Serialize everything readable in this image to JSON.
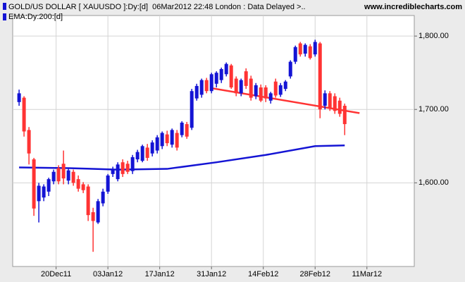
{
  "chart_data": {
    "type": "candlestick",
    "title": "GOLD/US DOLLAR [ XAUUSDO ]:Dy:[d]  06Mar2012 22:48 London : Data Delayed >..",
    "source": "www.incrediblecharts.com",
    "title_color": "#0000cc",
    "candles": {
      "x": [
        0,
        1,
        2,
        3,
        4,
        5,
        6,
        7,
        8,
        9,
        10,
        11,
        12,
        13,
        14,
        15,
        16,
        17,
        18,
        19,
        20,
        21,
        22,
        23,
        24,
        25,
        26,
        27,
        28,
        29,
        30,
        31,
        32,
        33,
        34,
        35,
        36,
        37,
        38,
        39,
        40,
        41,
        42,
        43,
        44,
        45,
        46,
        47,
        48,
        49,
        50,
        51,
        52,
        53,
        54,
        55,
        56,
        57,
        58,
        59,
        60,
        61,
        62,
        63,
        64,
        65,
        66
      ],
      "open": [
        1710,
        1716,
        1672,
        1632,
        1575,
        1580,
        1588,
        1602,
        1620,
        1626,
        1603,
        1615,
        1605,
        1598,
        1595,
        1560,
        1546,
        1572,
        1588,
        1612,
        1605,
        1628,
        1626,
        1616,
        1632,
        1630,
        1648,
        1640,
        1644,
        1650,
        1666,
        1652,
        1668,
        1665,
        1680,
        1675,
        1715,
        1720,
        1740,
        1725,
        1735,
        1740,
        1748,
        1760,
        1742,
        1722,
        1752,
        1742,
        1718,
        1730,
        1730,
        1712,
        1738,
        1720,
        1728,
        1745,
        1765,
        1790,
        1776,
        1786,
        1775,
        1790,
        1705,
        1722,
        1718,
        1712,
        1705
      ],
      "high": [
        1727,
        1718,
        1676,
        1634,
        1600,
        1598,
        1607,
        1618,
        1624,
        1644,
        1620,
        1618,
        1610,
        1601,
        1598,
        1566,
        1578,
        1592,
        1612,
        1622,
        1628,
        1632,
        1630,
        1638,
        1645,
        1652,
        1653,
        1658,
        1665,
        1670,
        1671,
        1674,
        1672,
        1684,
        1683,
        1728,
        1735,
        1742,
        1743,
        1750,
        1752,
        1757,
        1764,
        1762,
        1745,
        1742,
        1756,
        1746,
        1736,
        1734,
        1733,
        1724,
        1742,
        1736,
        1740,
        1767,
        1787,
        1792,
        1790,
        1789,
        1795,
        1792,
        1726,
        1725,
        1722,
        1716,
        1708
      ],
      "low": [
        1705,
        1663,
        1625,
        1555,
        1546,
        1575,
        1582,
        1598,
        1598,
        1598,
        1598,
        1596,
        1588,
        1586,
        1548,
        1506,
        1544,
        1568,
        1585,
        1608,
        1602,
        1608,
        1612,
        1612,
        1628,
        1628,
        1630,
        1636,
        1640,
        1646,
        1650,
        1648,
        1644,
        1662,
        1660,
        1672,
        1712,
        1716,
        1722,
        1722,
        1730,
        1736,
        1745,
        1728,
        1718,
        1718,
        1728,
        1712,
        1714,
        1710,
        1710,
        1708,
        1716,
        1717,
        1725,
        1742,
        1762,
        1772,
        1772,
        1768,
        1772,
        1688,
        1700,
        1698,
        1694,
        1690,
        1665
      ],
      "close": [
        1722,
        1670,
        1640,
        1565,
        1596,
        1595,
        1605,
        1615,
        1602,
        1606,
        1617,
        1600,
        1592,
        1590,
        1556,
        1548,
        1575,
        1588,
        1610,
        1619,
        1625,
        1612,
        1615,
        1635,
        1642,
        1650,
        1634,
        1655,
        1662,
        1668,
        1654,
        1672,
        1648,
        1682,
        1663,
        1725,
        1732,
        1740,
        1725,
        1748,
        1750,
        1755,
        1762,
        1730,
        1722,
        1740,
        1732,
        1716,
        1733,
        1712,
        1715,
        1722,
        1719,
        1733,
        1738,
        1765,
        1785,
        1775,
        1788,
        1770,
        1792,
        1700,
        1722,
        1702,
        1698,
        1694,
        1680
      ],
      "up_color": "#1414d4",
      "down_color": "#ff3333"
    },
    "series": [
      {
        "name": "EMA:Dy:200:[d]",
        "color": "#1414d4",
        "x": [
          0,
          10,
          20,
          30,
          40,
          50,
          60,
          66
        ],
        "values": [
          1621,
          1620,
          1618,
          1619,
          1628,
          1638,
          1650,
          1651
        ]
      }
    ],
    "trendline": {
      "x": [
        39,
        69
      ],
      "values": [
        1729,
        1695
      ],
      "color": "#ff3333"
    },
    "xlim": [
      -1.3,
      80.1
    ],
    "xticks": [
      {
        "value": 7.5,
        "label": "20Dec11"
      },
      {
        "value": 18,
        "label": "03Jan12"
      },
      {
        "value": 28.5,
        "label": "17Jan12"
      },
      {
        "value": 39,
        "label": "31Jan12"
      },
      {
        "value": 49.5,
        "label": "14Feb12"
      },
      {
        "value": 60,
        "label": "28Feb12"
      },
      {
        "value": 70.5,
        "label": "11Mar12"
      }
    ],
    "ylim": [
      1486,
      1828
    ],
    "yticks": [
      {
        "value": 1600,
        "label": "1,600.00"
      },
      {
        "value": 1700,
        "label": "1,700.00"
      },
      {
        "value": 1800,
        "label": "1,800.00"
      }
    ],
    "grid": true
  }
}
